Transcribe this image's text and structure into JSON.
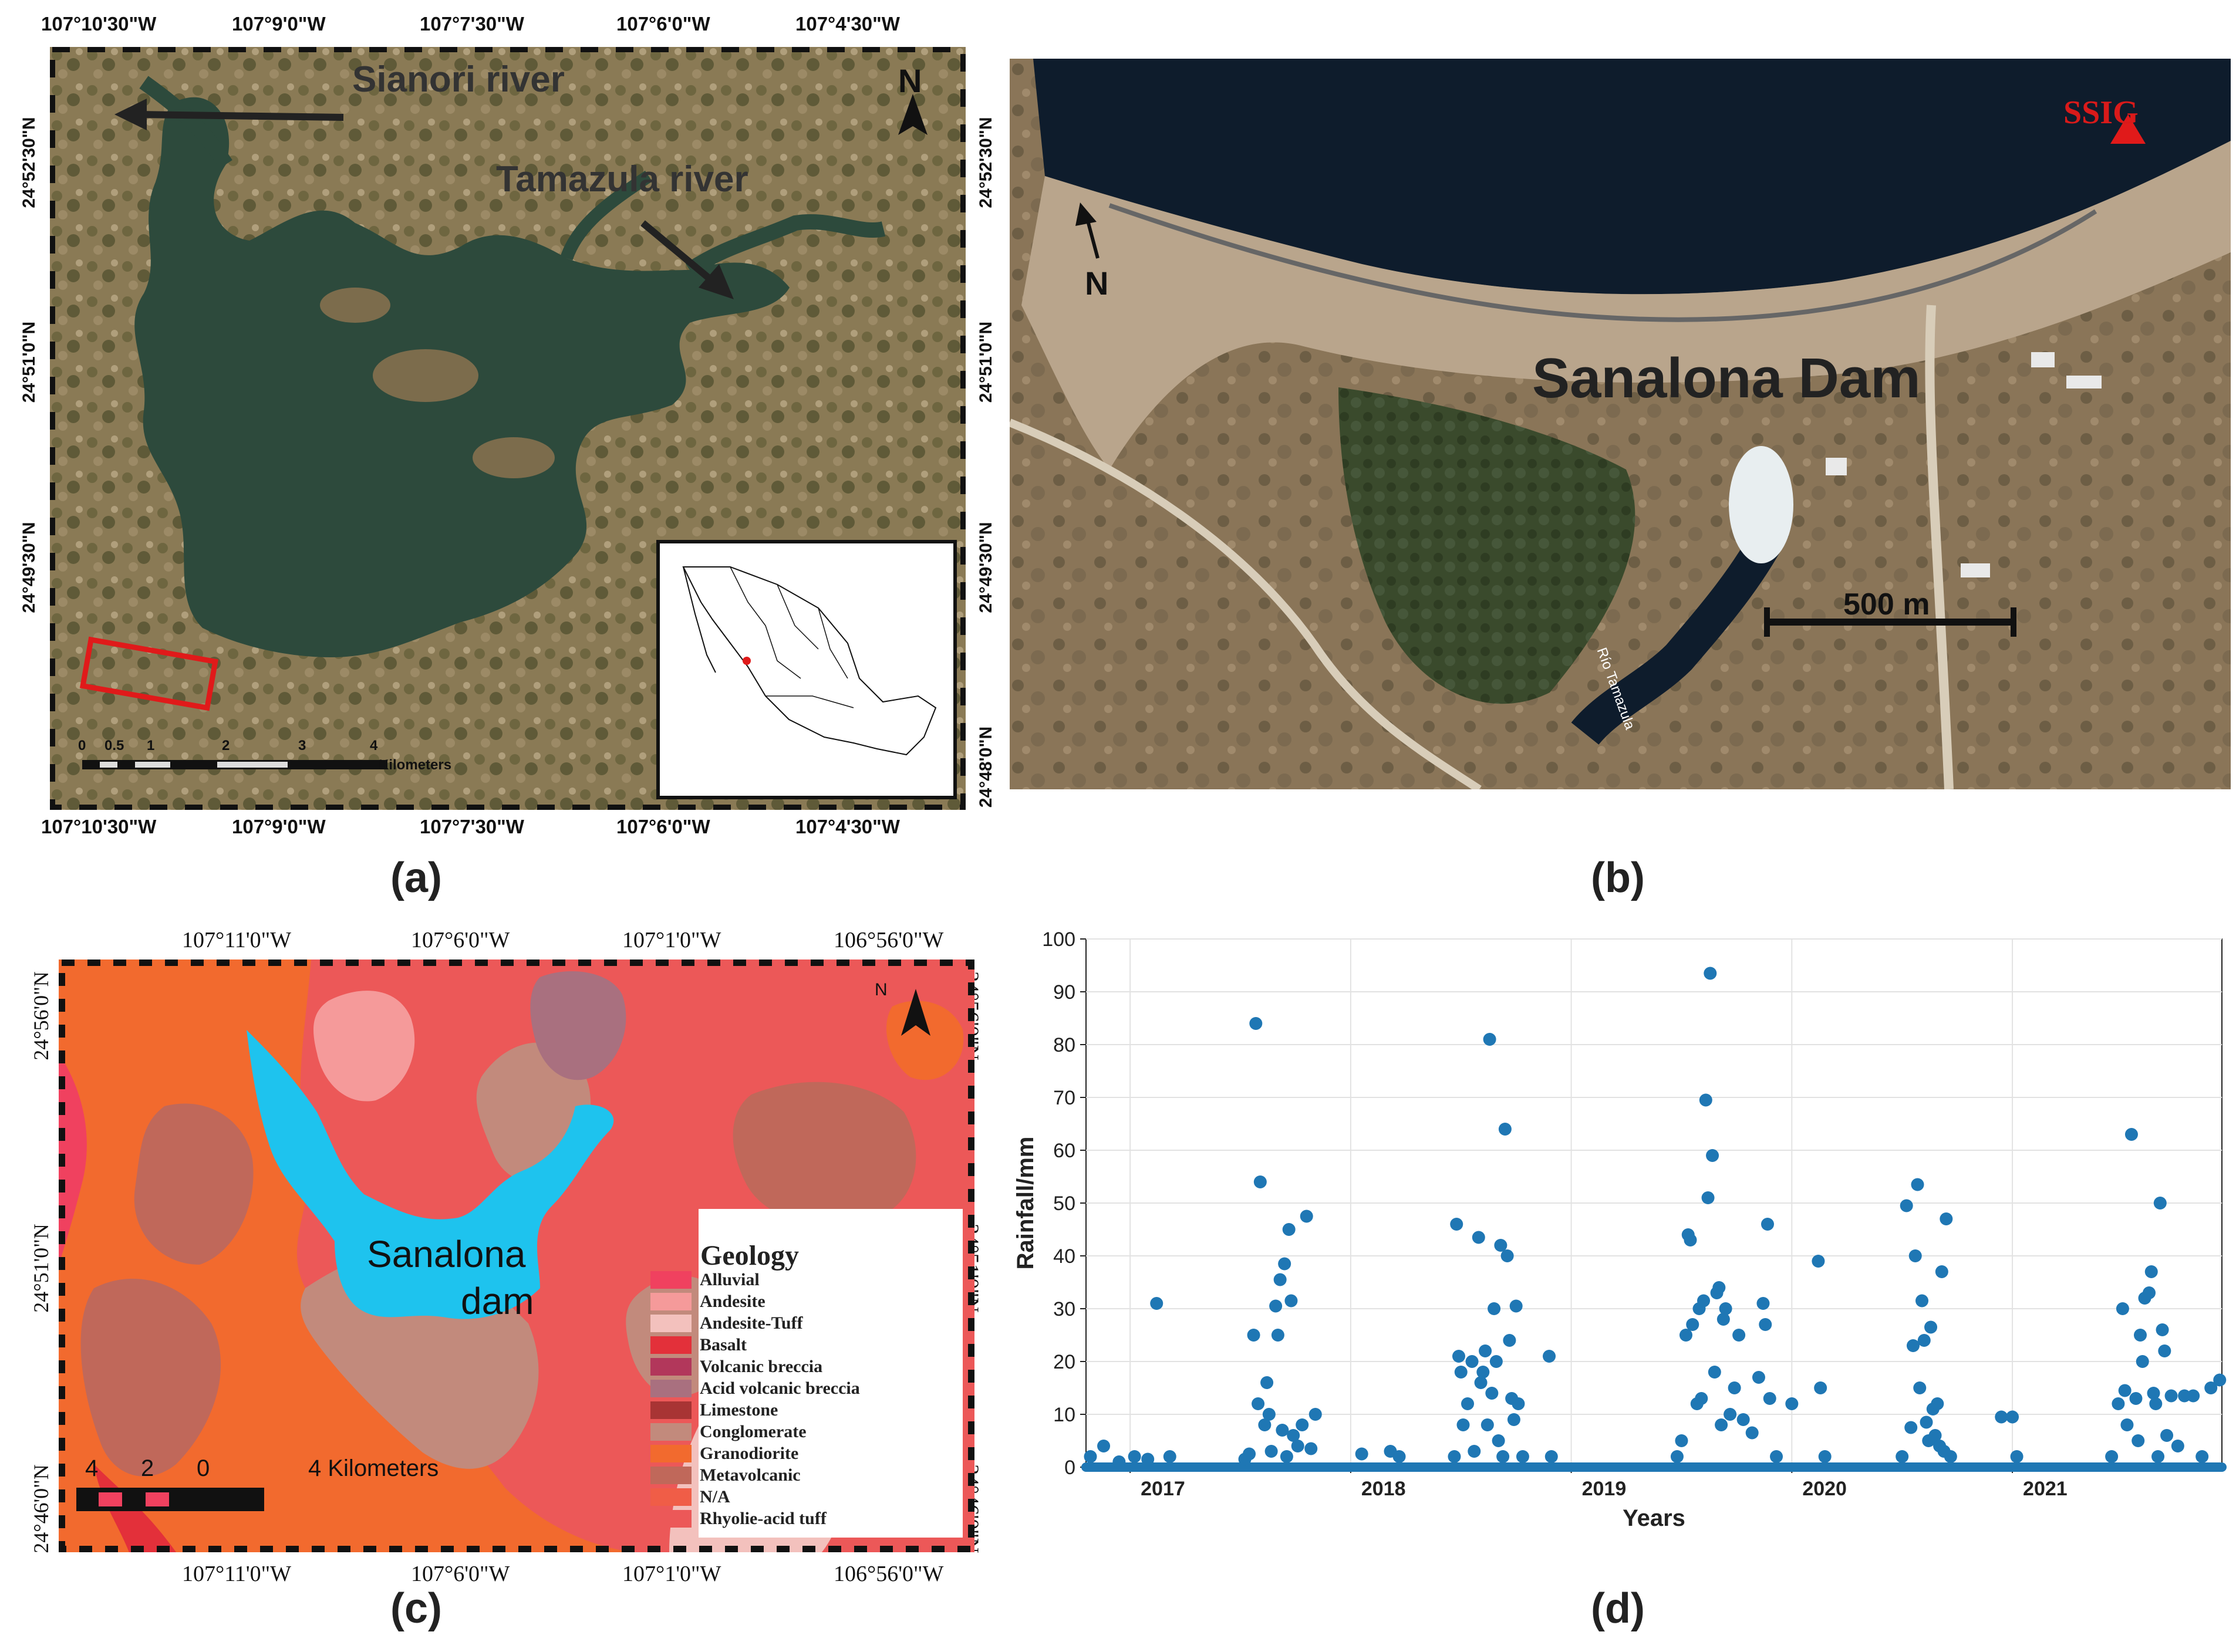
{
  "panel_a": {
    "caption": "(a)",
    "lon_ticks": [
      "107°10'30\"W",
      "107°9'0\"W",
      "107°7'30\"W",
      "107°6'0\"W",
      "107°4'30\"W"
    ],
    "lat_ticks": [
      "24°52'30\"N",
      "24°51'0\"N",
      "24°49'30\"N",
      "24°48'0\"N"
    ],
    "sianori_label": "Sianori river",
    "tamazula_label": "Tamazula river",
    "north_label": "N",
    "scale_numbers": [
      "0",
      "0.5",
      "1",
      "2",
      "3",
      "4"
    ],
    "scale_unit": "Kilometers"
  },
  "panel_b": {
    "caption": "(b)",
    "title": "Sanalona Dam",
    "station_label": "SSIG",
    "north_label": "N",
    "scale_label": "500 m",
    "river_label": "Río Tamazula"
  },
  "panel_c": {
    "caption": "(c)",
    "lon_ticks": [
      "107°11'0\"W",
      "107°6'0\"W",
      "107°1'0\"W",
      "106°56'0\"W"
    ],
    "lat_ticks": [
      "24°56'0\"N",
      "24°51'0\"N",
      "24°46'0\"N"
    ],
    "dam_label_1": "Sanalona",
    "dam_label_2": "dam",
    "north_label": "N",
    "scale_numbers": [
      "4",
      "2",
      "0"
    ],
    "scale_unit": "4 Kilometers",
    "legend_title": "Geology",
    "legend": [
      {
        "label": "Alluvial",
        "color": "#f0415f"
      },
      {
        "label": "Andesite",
        "color": "#f59a9a"
      },
      {
        "label": "Andesite-Tuff",
        "color": "#f3c1bd"
      },
      {
        "label": "Basalt",
        "color": "#e3303a"
      },
      {
        "label": "Volcanic breccia",
        "color": "#b2375b"
      },
      {
        "label": "Acid volcanic breccia",
        "color": "#a9707f"
      },
      {
        "label": "Limestone",
        "color": "#a83434"
      },
      {
        "label": "Conglomerate",
        "color": "#c28a7c"
      },
      {
        "label": "Granodiorite",
        "color": "#f26a2e"
      },
      {
        "label": "Metavolcanic",
        "color": "#c0685a"
      },
      {
        "label": "N/A",
        "color": "#f05d47"
      },
      {
        "label": "Rhyolie-acid tuff",
        "color": "#ec5858"
      }
    ]
  },
  "panel_d": {
    "caption": "(d)"
  },
  "chart_data": {
    "type": "scatter",
    "title": "",
    "xlabel": "Years",
    "ylabel": "Rainfall/mm",
    "x_tick_labels": [
      "2017",
      "2018",
      "2019",
      "2020",
      "2021"
    ],
    "x_tick_positions": [
      2017.0,
      2018.0,
      2019.0,
      2020.0,
      2021.0
    ],
    "xlim": [
      2016.8,
      2021.95
    ],
    "ylim": [
      0,
      100
    ],
    "y_ticks": [
      0,
      10,
      20,
      30,
      40,
      50,
      60,
      70,
      80,
      90,
      100
    ],
    "grid": true,
    "marker_color": "#1f77b4",
    "baseline_range": [
      2016.8,
      2021.95
    ],
    "points": [
      [
        2016.82,
        2.0
      ],
      [
        2016.88,
        4.0
      ],
      [
        2016.95,
        1.0
      ],
      [
        2017.02,
        2.0
      ],
      [
        2017.08,
        1.5
      ],
      [
        2017.12,
        31.0
      ],
      [
        2017.18,
        2.0
      ],
      [
        2017.52,
        1.5
      ],
      [
        2017.54,
        2.5
      ],
      [
        2017.56,
        25.0
      ],
      [
        2017.57,
        84.0
      ],
      [
        2017.58,
        12.0
      ],
      [
        2017.59,
        54.0
      ],
      [
        2017.61,
        8.0
      ],
      [
        2017.62,
        16.0
      ],
      [
        2017.63,
        10.0
      ],
      [
        2017.64,
        3.0
      ],
      [
        2017.66,
        30.5
      ],
      [
        2017.67,
        25.0
      ],
      [
        2017.68,
        35.5
      ],
      [
        2017.69,
        7.0
      ],
      [
        2017.7,
        38.5
      ],
      [
        2017.71,
        2.0
      ],
      [
        2017.72,
        45.0
      ],
      [
        2017.73,
        31.5
      ],
      [
        2017.74,
        6.0
      ],
      [
        2017.76,
        4.0
      ],
      [
        2017.78,
        8.0
      ],
      [
        2017.8,
        47.5
      ],
      [
        2017.82,
        3.5
      ],
      [
        2017.84,
        10.0
      ],
      [
        2018.05,
        2.5
      ],
      [
        2018.18,
        3.0
      ],
      [
        2018.22,
        2.0
      ],
      [
        2018.47,
        2.0
      ],
      [
        2018.48,
        46.0
      ],
      [
        2018.49,
        21.0
      ],
      [
        2018.5,
        18.0
      ],
      [
        2018.51,
        8.0
      ],
      [
        2018.53,
        12.0
      ],
      [
        2018.55,
        20.0
      ],
      [
        2018.56,
        3.0
      ],
      [
        2018.58,
        43.5
      ],
      [
        2018.59,
        16.0
      ],
      [
        2018.6,
        18.0
      ],
      [
        2018.61,
        22.0
      ],
      [
        2018.62,
        8.0
      ],
      [
        2018.63,
        81.0
      ],
      [
        2018.64,
        14.0
      ],
      [
        2018.65,
        30.0
      ],
      [
        2018.66,
        20.0
      ],
      [
        2018.67,
        5.0
      ],
      [
        2018.68,
        42.0
      ],
      [
        2018.69,
        2.0
      ],
      [
        2018.7,
        64.0
      ],
      [
        2018.71,
        40.0
      ],
      [
        2018.72,
        24.0
      ],
      [
        2018.73,
        13.0
      ],
      [
        2018.74,
        9.0
      ],
      [
        2018.75,
        30.5
      ],
      [
        2018.76,
        12.0
      ],
      [
        2018.78,
        2.0
      ],
      [
        2018.9,
        21.0
      ],
      [
        2018.91,
        2.0
      ],
      [
        2019.48,
        2.0
      ],
      [
        2019.5,
        5.0
      ],
      [
        2019.52,
        25.0
      ],
      [
        2019.53,
        44.0
      ],
      [
        2019.54,
        43.0
      ],
      [
        2019.55,
        27.0
      ],
      [
        2019.57,
        12.0
      ],
      [
        2019.58,
        30.0
      ],
      [
        2019.59,
        13.0
      ],
      [
        2019.6,
        31.5
      ],
      [
        2019.61,
        69.5
      ],
      [
        2019.62,
        51.0
      ],
      [
        2019.63,
        93.5
      ],
      [
        2019.64,
        59.0
      ],
      [
        2019.65,
        18.0
      ],
      [
        2019.66,
        33.0
      ],
      [
        2019.67,
        34.0
      ],
      [
        2019.68,
        8.0
      ],
      [
        2019.69,
        28.0
      ],
      [
        2019.7,
        30.0
      ],
      [
        2019.72,
        10.0
      ],
      [
        2019.74,
        15.0
      ],
      [
        2019.76,
        25.0
      ],
      [
        2019.78,
        9.0
      ],
      [
        2019.82,
        6.5
      ],
      [
        2019.85,
        17.0
      ],
      [
        2019.87,
        31.0
      ],
      [
        2019.88,
        27.0
      ],
      [
        2019.89,
        46.0
      ],
      [
        2019.9,
        13.0
      ],
      [
        2019.93,
        2.0
      ],
      [
        2020.0,
        12.0
      ],
      [
        2020.12,
        39.0
      ],
      [
        2020.13,
        15.0
      ],
      [
        2020.15,
        2.0
      ],
      [
        2020.5,
        2.0
      ],
      [
        2020.52,
        49.5
      ],
      [
        2020.54,
        7.5
      ],
      [
        2020.55,
        23.0
      ],
      [
        2020.56,
        40.0
      ],
      [
        2020.57,
        53.5
      ],
      [
        2020.58,
        15.0
      ],
      [
        2020.59,
        31.5
      ],
      [
        2020.6,
        24.0
      ],
      [
        2020.61,
        8.5
      ],
      [
        2020.62,
        5.0
      ],
      [
        2020.63,
        26.5
      ],
      [
        2020.64,
        11.0
      ],
      [
        2020.65,
        6.0
      ],
      [
        2020.66,
        12.0
      ],
      [
        2020.67,
        4.0
      ],
      [
        2020.68,
        37.0
      ],
      [
        2020.69,
        3.0
      ],
      [
        2020.7,
        47.0
      ],
      [
        2020.72,
        2.0
      ],
      [
        2020.95,
        9.5
      ],
      [
        2021.0,
        9.5
      ],
      [
        2021.02,
        2.0
      ],
      [
        2021.45,
        2.0
      ],
      [
        2021.48,
        12.0
      ],
      [
        2021.5,
        30.0
      ],
      [
        2021.51,
        14.5
      ],
      [
        2021.52,
        8.0
      ],
      [
        2021.54,
        63.0
      ],
      [
        2021.56,
        13.0
      ],
      [
        2021.57,
        5.0
      ],
      [
        2021.58,
        25.0
      ],
      [
        2021.59,
        20.0
      ],
      [
        2021.6,
        32.0
      ],
      [
        2021.62,
        33.0
      ],
      [
        2021.63,
        37.0
      ],
      [
        2021.64,
        14.0
      ],
      [
        2021.65,
        12.0
      ],
      [
        2021.66,
        2.0
      ],
      [
        2021.67,
        50.0
      ],
      [
        2021.68,
        26.0
      ],
      [
        2021.69,
        22.0
      ],
      [
        2021.7,
        6.0
      ],
      [
        2021.72,
        13.5
      ],
      [
        2021.75,
        4.0
      ],
      [
        2021.78,
        13.5
      ],
      [
        2021.82,
        13.5
      ],
      [
        2021.86,
        2.0
      ],
      [
        2021.9,
        15.0
      ],
      [
        2021.94,
        16.5
      ]
    ]
  }
}
